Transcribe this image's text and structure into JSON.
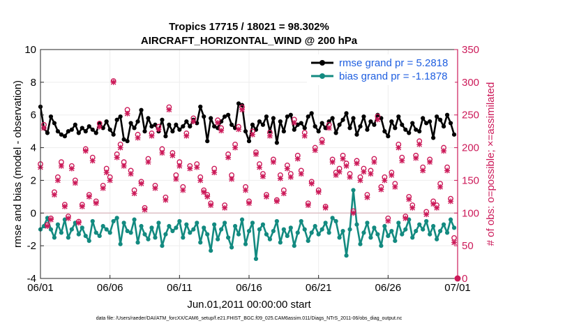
{
  "chart_data": {
    "type": "line",
    "title": "Tropics 17715 / 18021 = 98.302%",
    "subtitle": "AIRCRAFT_HORIZONTAL_WIND @ 200 hPa",
    "xlabel": "Jun.01,2011 00:00:00 start",
    "ylabel": "rmse and bias (model - observation)",
    "y2label": "# of obs: o=possible; ×=assimilated",
    "footnote": "data file: /Users/raeder/DAI/ATM_forcXX/CAM6_setup/f.e21.FHIST_BGC.f09_025.CAM6assim.011/Diags_NTrS_2011-06/obs_diag_output.nc",
    "xlim": [
      0,
      30
    ],
    "ylim": [
      -4,
      10
    ],
    "y2lim": [
      0,
      350
    ],
    "x_ticks": [
      0,
      5,
      10,
      15,
      20,
      25,
      30
    ],
    "x_tick_labels": [
      "06/01",
      "06/06",
      "06/11",
      "06/16",
      "06/21",
      "06/26",
      "07/01"
    ],
    "y_ticks": [
      -4,
      -2,
      0,
      2,
      4,
      6,
      8,
      10
    ],
    "y_tick_labels": [
      "-4",
      "-2",
      "0",
      "2",
      "4",
      "6",
      "8",
      "10"
    ],
    "y2_ticks": [
      0,
      50,
      100,
      150,
      200,
      250,
      300,
      350
    ],
    "y2_tick_labels": [
      "0",
      "50",
      "100",
      "150",
      "200",
      "250",
      "300",
      "350"
    ],
    "x": [
      0,
      0.25,
      0.5,
      0.75,
      1,
      1.25,
      1.5,
      1.75,
      2,
      2.25,
      2.5,
      2.75,
      3,
      3.25,
      3.5,
      3.75,
      4,
      4.25,
      4.5,
      4.75,
      5,
      5.25,
      5.5,
      5.75,
      6,
      6.25,
      6.5,
      6.75,
      7,
      7.25,
      7.5,
      7.75,
      8,
      8.25,
      8.5,
      8.75,
      9,
      9.25,
      9.5,
      9.75,
      10,
      10.25,
      10.5,
      10.75,
      11,
      11.25,
      11.5,
      11.75,
      12,
      12.25,
      12.5,
      12.75,
      13,
      13.25,
      13.5,
      13.75,
      14,
      14.25,
      14.5,
      14.75,
      15,
      15.25,
      15.5,
      15.75,
      16,
      16.25,
      16.5,
      16.75,
      17,
      17.25,
      17.5,
      17.75,
      18,
      18.25,
      18.5,
      18.75,
      19,
      19.25,
      19.5,
      19.75,
      20,
      20.25,
      20.5,
      20.75,
      21,
      21.25,
      21.5,
      21.75,
      22,
      22.25,
      22.5,
      22.75,
      23,
      23.25,
      23.5,
      23.75,
      24,
      24.25,
      24.5,
      24.75,
      25,
      25.25,
      25.5,
      25.75,
      26,
      26.25,
      26.5,
      26.75,
      27,
      27.25,
      27.5,
      27.75,
      28,
      28.25,
      28.5,
      28.75,
      29,
      29.25,
      29.5,
      29.75
    ],
    "series": [
      {
        "name": "rmse grand pr = 5.2818",
        "color": "#000000",
        "axis": "left",
        "values": [
          6.5,
          5.2,
          4.9,
          5.9,
          5.5,
          5.0,
          4.8,
          4.7,
          5.0,
          5.1,
          5.4,
          4.9,
          5.2,
          5.0,
          5.3,
          5.1,
          4.9,
          5.5,
          5.2,
          5.6,
          5.1,
          4.8,
          5.7,
          5.9,
          4.5,
          4.4,
          5.5,
          5.2,
          5.6,
          6.3,
          5.0,
          5.8,
          5.3,
          5.4,
          5.0,
          5.7,
          4.7,
          5.4,
          5.0,
          5.4,
          5.1,
          5.3,
          5.6,
          5.3,
          5.7,
          5.5,
          6.5,
          5.9,
          4.4,
          5.8,
          5.3,
          5.2,
          5.6,
          5.9,
          6.0,
          5.4,
          5.2,
          6.7,
          6.6,
          5.0,
          4.4,
          5.4,
          5.1,
          5.6,
          5.4,
          5.9,
          5.0,
          5.8,
          4.3,
          5.6,
          5.0,
          5.9,
          6.0,
          5.1,
          5.4,
          5.5,
          5.2,
          5.9,
          6.1,
          5.3,
          5.0,
          5.5,
          5.2,
          5.6,
          5.8,
          4.9,
          5.4,
          5.7,
          6.1,
          5.2,
          5.8,
          4.8,
          5.3,
          5.9,
          5.1,
          5.6,
          5.4,
          6.0,
          5.8,
          5.0,
          4.7,
          5.6,
          5.2,
          5.9,
          5.4,
          5.1,
          4.9,
          5.5,
          5.1,
          5.0,
          5.8,
          5.5,
          5.6,
          4.6,
          5.9,
          5.7,
          5.3,
          6.0,
          5.5,
          4.8
        ]
      },
      {
        "name": "bias grand pr = -1.1878",
        "color": "#138a80",
        "axis": "left",
        "values": [
          -1.0,
          -0.8,
          -0.3,
          -1.0,
          -1.5,
          -0.7,
          -1.2,
          -0.4,
          -1.5,
          -1.0,
          -0.6,
          -1.3,
          -0.9,
          -1.4,
          -1.7,
          -0.5,
          -1.2,
          -1.4,
          -0.8,
          -1.0,
          -1.2,
          -0.5,
          -0.3,
          -1.9,
          -0.6,
          -1.1,
          -1.2,
          -0.4,
          -1.8,
          -0.8,
          -1.3,
          -1.6,
          -0.9,
          -1.5,
          -0.6,
          -2.0,
          -1.3,
          -0.8,
          -1.1,
          -0.9,
          -0.5,
          -1.5,
          -0.7,
          -1.2,
          -1.0,
          -0.6,
          -1.8,
          -0.9,
          -1.3,
          -2.3,
          -0.7,
          -1.6,
          -1.0,
          -0.6,
          -1.5,
          -2.1,
          -0.8,
          -1.3,
          -0.4,
          -1.9,
          -1.1,
          -0.6,
          -2.8,
          -1.0,
          -0.7,
          -1.3,
          -1.6,
          -1.1,
          -0.5,
          -1.8,
          -1.0,
          -1.4,
          -0.9,
          -2.0,
          -1.2,
          -0.5,
          -1.0,
          -1.7,
          -1.2,
          -0.8,
          -1.3,
          -1.0,
          -0.6,
          -1.2,
          -0.3,
          -0.5,
          -1.5,
          -1.1,
          -2.6,
          -1.0,
          1.4,
          -0.7,
          -1.9,
          -1.2,
          -0.6,
          -1.5,
          -0.9,
          -1.3,
          -2.0,
          -0.8,
          -1.4,
          -1.1,
          -1.7,
          -0.6,
          -1.3,
          -1.0,
          -0.4,
          -1.5,
          -1.1,
          -0.7,
          -1.0,
          -0.5,
          -1.3,
          -0.8,
          -1.6,
          -1.1,
          -0.7,
          -1.2,
          -0.4,
          -0.9
        ]
      },
      {
        "name": "possible",
        "marker": "o",
        "color": "#cc1a59",
        "axis": "right",
        "values": [
          175,
          235,
          82,
          92,
          132,
          155,
          178,
          113,
          95,
          172,
          150,
          87,
          113,
          198,
          128,
          185,
          118,
          237,
          142,
          168,
          155,
          302,
          190,
          205,
          178,
          258,
          165,
          135,
          220,
          148,
          108,
          183,
          222,
          142,
          232,
          198,
          124,
          262,
          192,
          158,
          178,
          140,
          222,
          172,
          245,
          175,
          155,
          135,
          128,
          115,
          168,
          242,
          230,
          112,
          190,
          158,
          205,
          232,
          262,
          140,
          118,
          225,
          193,
          175,
          160,
          128,
          223,
          182,
          120,
          158,
          135,
          173,
          160,
          243,
          188,
          165,
          223,
          115,
          148,
          200,
          135,
          212,
          110,
          235,
          182,
          162,
          168,
          188,
          176,
          160,
          103,
          180,
          155,
          168,
          128,
          165,
          183,
          248,
          140,
          155,
          92,
          162,
          145,
          205,
          185,
          95,
          125,
          112,
          188,
          210,
          170,
          102,
          182,
          118,
          112,
          145,
          200,
          170,
          122,
          62
        ]
      },
      {
        "name": "assimilated",
        "marker": "x",
        "color": "#cc1a59",
        "axis": "right",
        "values": [
          170,
          230,
          80,
          90,
          128,
          150,
          172,
          110,
          92,
          168,
          146,
          85,
          110,
          195,
          125,
          180,
          115,
          232,
          138,
          162,
          150,
          300,
          185,
          200,
          172,
          252,
          160,
          130,
          215,
          145,
          105,
          178,
          218,
          138,
          228,
          192,
          120,
          258,
          188,
          152,
          172,
          135,
          218,
          168,
          240,
          170,
          150,
          132,
          125,
          112,
          162,
          238,
          226,
          108,
          185,
          152,
          200,
          228,
          258,
          135,
          115,
          220,
          190,
          170,
          156,
          125,
          218,
          178,
          118,
          153,
          130,
          168,
          155,
          238,
          183,
          160,
          218,
          112,
          145,
          196,
          132,
          208,
          108,
          230,
          178,
          158,
          163,
          183,
          172,
          155,
          100,
          176,
          150,
          163,
          124,
          160,
          178,
          243,
          136,
          150,
          88,
          158,
          140,
          200,
          180,
          92,
          121,
          108,
          184,
          205,
          165,
          98,
          178,
          114,
          108,
          140,
          195,
          165,
          118,
          55
        ]
      }
    ],
    "legend": {
      "placement": "top-right",
      "entries": [
        "rmse grand pr = 5.2818",
        "bias grand pr = -1.1878"
      ]
    },
    "zero_line": true
  }
}
